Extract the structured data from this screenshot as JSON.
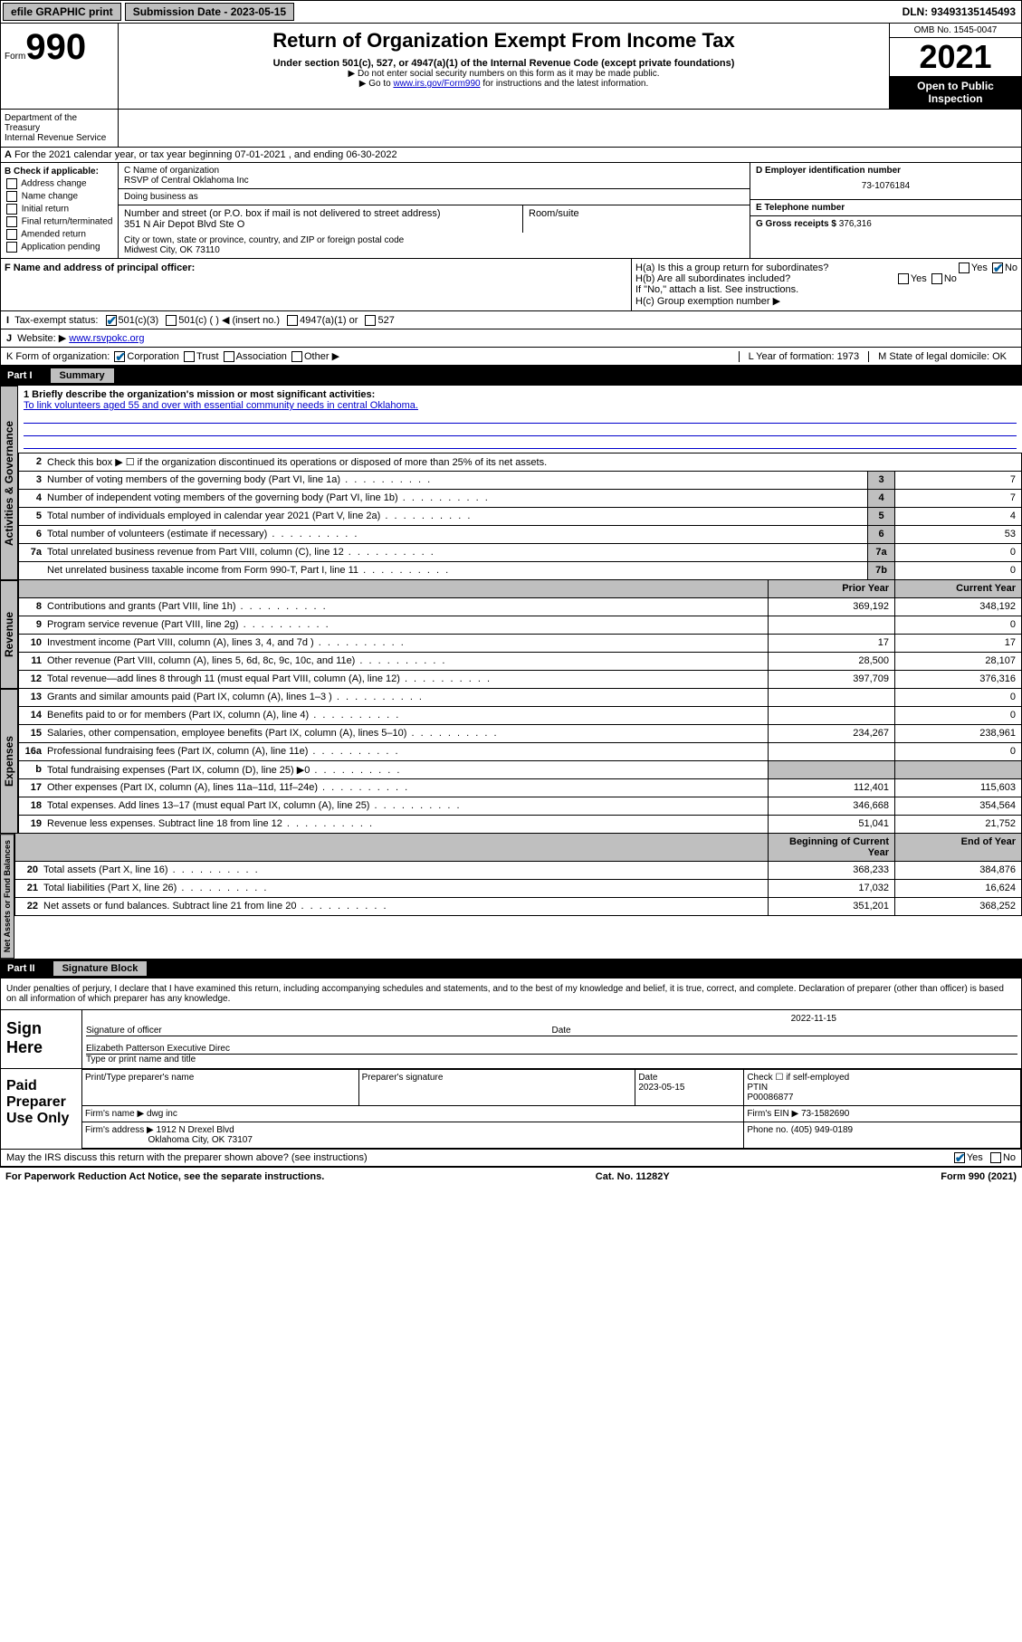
{
  "topbar": {
    "efile": "efile GRAPHIC print",
    "submission_label": "Submission Date - 2023-05-15",
    "dln": "DLN: 93493135145493"
  },
  "header": {
    "form": "Form",
    "form_num": "990",
    "title": "Return of Organization Exempt From Income Tax",
    "subtitle": "Under section 501(c), 527, or 4947(a)(1) of the Internal Revenue Code (except private foundations)",
    "note1": "▶ Do not enter social security numbers on this form as it may be made public.",
    "note2_pre": "▶ Go to ",
    "note2_link": "www.irs.gov/Form990",
    "note2_post": " for instructions and the latest information.",
    "dept": "Department of the Treasury\nInternal Revenue Service",
    "omb": "OMB No. 1545-0047",
    "year": "2021",
    "inspection": "Open to Public Inspection"
  },
  "line_a": "For the 2021 calendar year, or tax year beginning 07-01-2021  , and ending 06-30-2022",
  "section_b": {
    "label": "B Check if applicable:",
    "items": [
      "Address change",
      "Name change",
      "Initial return",
      "Final return/terminated",
      "Amended return",
      "Application pending"
    ]
  },
  "section_c": {
    "name_label": "C Name of organization",
    "name": "RSVP of Central Oklahoma Inc",
    "dba_label": "Doing business as",
    "street_label": "Number and street (or P.O. box if mail is not delivered to street address)",
    "room_label": "Room/suite",
    "street": "351 N Air Depot Blvd Ste O",
    "city_label": "City or town, state or province, country, and ZIP or foreign postal code",
    "city": "Midwest City, OK  73110"
  },
  "section_d": {
    "label": "D Employer identification number",
    "value": "73-1076184"
  },
  "section_e": {
    "label": "E Telephone number",
    "value": ""
  },
  "section_g": {
    "label": "G Gross receipts $",
    "value": "376,316"
  },
  "section_f": {
    "label": "F  Name and address of principal officer:"
  },
  "section_h": {
    "ha": "H(a)  Is this a group return for subordinates?",
    "hb": "H(b)  Are all subordinates included?",
    "hb_note": "If \"No,\" attach a list. See instructions.",
    "hc": "H(c)  Group exemption number ▶"
  },
  "section_i": {
    "label": "Tax-exempt status:",
    "opts": [
      "501(c)(3)",
      "501(c) (  ) ◀ (insert no.)",
      "4947(a)(1) or",
      "527"
    ]
  },
  "section_j": {
    "label": "Website: ▶",
    "value": "www.rsvpokc.org"
  },
  "section_k": {
    "label": "K Form of organization:",
    "opts": [
      "Corporation",
      "Trust",
      "Association",
      "Other ▶"
    ]
  },
  "section_l": {
    "label": "L Year of formation:",
    "value": "1973"
  },
  "section_m": {
    "label": "M State of legal domicile:",
    "value": "OK"
  },
  "yesno": {
    "yes": "Yes",
    "no": "No"
  },
  "part1": {
    "header": "Part I",
    "title": "Summary",
    "mission_label": "1   Briefly describe the organization's mission or most significant activities:",
    "mission": "To link volunteers aged 55 and over with essential community needs in central Oklahoma.",
    "line2": "Check this box ▶ ☐  if the organization discontinued its operations or disposed of more than 25% of its net assets.",
    "tabs": {
      "ag": "Activities & Governance",
      "rev": "Revenue",
      "exp": "Expenses",
      "na": "Net Assets or Fund Balances"
    },
    "cols": {
      "prior": "Prior Year",
      "current": "Current Year",
      "begin": "Beginning of Current Year",
      "end": "End of Year"
    },
    "rows": [
      {
        "n": "3",
        "d": "Number of voting members of the governing body (Part VI, line 1a)",
        "box": "3",
        "v": "7"
      },
      {
        "n": "4",
        "d": "Number of independent voting members of the governing body (Part VI, line 1b)",
        "box": "4",
        "v": "7"
      },
      {
        "n": "5",
        "d": "Total number of individuals employed in calendar year 2021 (Part V, line 2a)",
        "box": "5",
        "v": "4"
      },
      {
        "n": "6",
        "d": "Total number of volunteers (estimate if necessary)",
        "box": "6",
        "v": "53"
      },
      {
        "n": "7a",
        "d": "Total unrelated business revenue from Part VIII, column (C), line 12",
        "box": "7a",
        "v": "0"
      },
      {
        "n": "",
        "d": "Net unrelated business taxable income from Form 990-T, Part I, line 11",
        "box": "7b",
        "v": "0"
      }
    ],
    "rev_rows": [
      {
        "n": "8",
        "d": "Contributions and grants (Part VIII, line 1h)",
        "p": "369,192",
        "c": "348,192"
      },
      {
        "n": "9",
        "d": "Program service revenue (Part VIII, line 2g)",
        "p": "",
        "c": "0"
      },
      {
        "n": "10",
        "d": "Investment income (Part VIII, column (A), lines 3, 4, and 7d )",
        "p": "17",
        "c": "17"
      },
      {
        "n": "11",
        "d": "Other revenue (Part VIII, column (A), lines 5, 6d, 8c, 9c, 10c, and 11e)",
        "p": "28,500",
        "c": "28,107"
      },
      {
        "n": "12",
        "d": "Total revenue—add lines 8 through 11 (must equal Part VIII, column (A), line 12)",
        "p": "397,709",
        "c": "376,316"
      }
    ],
    "exp_rows": [
      {
        "n": "13",
        "d": "Grants and similar amounts paid (Part IX, column (A), lines 1–3 )",
        "p": "",
        "c": "0"
      },
      {
        "n": "14",
        "d": "Benefits paid to or for members (Part IX, column (A), line 4)",
        "p": "",
        "c": "0"
      },
      {
        "n": "15",
        "d": "Salaries, other compensation, employee benefits (Part IX, column (A), lines 5–10)",
        "p": "234,267",
        "c": "238,961"
      },
      {
        "n": "16a",
        "d": "Professional fundraising fees (Part IX, column (A), line 11e)",
        "p": "",
        "c": "0"
      },
      {
        "n": "b",
        "d": "Total fundraising expenses (Part IX, column (D), line 25) ▶0",
        "p": "",
        "c": "",
        "shade": true
      },
      {
        "n": "17",
        "d": "Other expenses (Part IX, column (A), lines 11a–11d, 11f–24e)",
        "p": "112,401",
        "c": "115,603"
      },
      {
        "n": "18",
        "d": "Total expenses. Add lines 13–17 (must equal Part IX, column (A), line 25)",
        "p": "346,668",
        "c": "354,564"
      },
      {
        "n": "19",
        "d": "Revenue less expenses. Subtract line 18 from line 12",
        "p": "51,041",
        "c": "21,752"
      }
    ],
    "na_rows": [
      {
        "n": "20",
        "d": "Total assets (Part X, line 16)",
        "p": "368,233",
        "c": "384,876"
      },
      {
        "n": "21",
        "d": "Total liabilities (Part X, line 26)",
        "p": "17,032",
        "c": "16,624"
      },
      {
        "n": "22",
        "d": "Net assets or fund balances. Subtract line 21 from line 20",
        "p": "351,201",
        "c": "368,252"
      }
    ]
  },
  "part2": {
    "header": "Part II",
    "title": "Signature Block",
    "penalty": "Under penalties of perjury, I declare that I have examined this return, including accompanying schedules and statements, and to the best of my knowledge and belief, it is true, correct, and complete. Declaration of preparer (other than officer) is based on all information of which preparer has any knowledge.",
    "sign_here": "Sign Here",
    "sig_officer": "Signature of officer",
    "date": "Date",
    "sig_date": "2022-11-15",
    "name_title": "Elizabeth Patterson  Executive Direc",
    "name_title_label": "Type or print name and title",
    "paid": "Paid Preparer Use Only",
    "prep_name_label": "Print/Type preparer's name",
    "prep_sig_label": "Preparer's signature",
    "prep_date_label": "Date",
    "prep_date": "2023-05-15",
    "check_self": "Check ☐ if self-employed",
    "ptin_label": "PTIN",
    "ptin": "P00086877",
    "firm_name_label": "Firm's name    ▶",
    "firm_name": "dwg inc",
    "firm_ein_label": "Firm's EIN ▶",
    "firm_ein": "73-1582690",
    "firm_addr_label": "Firm's address ▶",
    "firm_addr1": "1912 N Drexel Blvd",
    "firm_addr2": "Oklahoma City, OK  73107",
    "phone_label": "Phone no.",
    "phone": "(405) 949-0189",
    "discuss": "May the IRS discuss this return with the preparer shown above? (see instructions)"
  },
  "footer": {
    "left": "For Paperwork Reduction Act Notice, see the separate instructions.",
    "mid": "Cat. No. 11282Y",
    "right": "Form 990 (2021)"
  }
}
